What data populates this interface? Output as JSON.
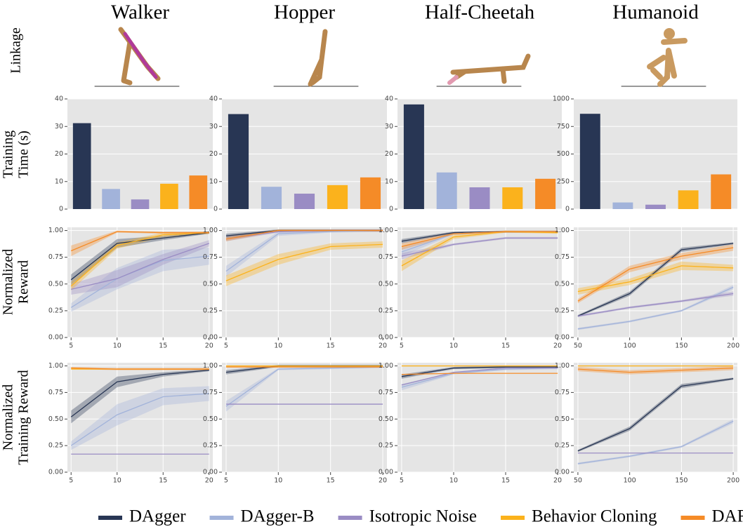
{
  "columns": [
    "Walker",
    "Hopper",
    "Half-Cheetah",
    "Humanoid"
  ],
  "row_labels": [
    [
      "Linkage"
    ],
    [
      "Training",
      "Time (s)"
    ],
    [
      "Normalized",
      "Reward"
    ],
    [
      "Normalized",
      "Training Reward"
    ]
  ],
  "chart_data": [
    {
      "type": "bar",
      "values": [
        31.2,
        7.3,
        3.5,
        9.2,
        12.2
      ],
      "colors": [
        "#283654",
        "#a2b3da",
        "#9a8cc4",
        "#fbb21c",
        "#f58b27"
      ],
      "ylim": [
        0,
        40
      ],
      "yticks": [
        0,
        10,
        20,
        30,
        40
      ],
      "grid": true
    },
    {
      "type": "bar",
      "values": [
        34.5,
        8.1,
        5.6,
        8.7,
        11.5
      ],
      "colors": [
        "#283654",
        "#a2b3da",
        "#9a8cc4",
        "#fbb21c",
        "#f58b27"
      ],
      "ylim": [
        0,
        40
      ],
      "yticks": [
        0,
        10,
        20,
        30,
        40
      ],
      "grid": true
    },
    {
      "type": "bar",
      "values": [
        38,
        13.3,
        7.9,
        7.9,
        11
      ],
      "colors": [
        "#283654",
        "#a2b3da",
        "#9a8cc4",
        "#fbb21c",
        "#f58b27"
      ],
      "ylim": [
        0,
        40
      ],
      "yticks": [
        0,
        10,
        20,
        30,
        40
      ],
      "grid": true
    },
    {
      "type": "bar",
      "values": [
        865,
        60,
        40,
        170,
        315
      ],
      "colors": [
        "#283654",
        "#a2b3da",
        "#9a8cc4",
        "#fbb21c",
        "#f58b27"
      ],
      "ylim": [
        0,
        1000
      ],
      "yticks": [
        0,
        250,
        500,
        750,
        1000
      ],
      "grid": true
    },
    {
      "type": "line",
      "x": [
        5,
        10,
        15,
        20
      ],
      "xlim": [
        4.6,
        20.4
      ],
      "xticks": [
        5,
        10,
        15,
        20
      ],
      "ylim": [
        0,
        1.03
      ],
      "yticks": [
        {
          "value": 0,
          "label": "0.00"
        },
        {
          "value": 0.25,
          "label": "0.25"
        },
        {
          "value": 0.5,
          "label": "0.50"
        },
        {
          "value": 0.75,
          "label": "0.75"
        },
        {
          "value": 1,
          "label": "1.00"
        }
      ],
      "grid": true,
      "series": [
        {
          "name": "DAgger",
          "color": "#283654",
          "values": [
            0.54,
            0.88,
            0.93,
            0.98
          ],
          "error": [
            0.05,
            0.04,
            0.02,
            0.01
          ]
        },
        {
          "name": "DAgger-B",
          "color": "#a2b3da",
          "values": [
            0.28,
            0.55,
            0.72,
            0.76
          ],
          "error": [
            0.04,
            0.1,
            0.1,
            0.08
          ]
        },
        {
          "name": "Isotropic Noise",
          "color": "#9a8cc4",
          "values": [
            0.45,
            0.55,
            0.73,
            0.88
          ],
          "error": [
            0.05,
            0.08,
            0.05,
            0.03
          ]
        },
        {
          "name": "Behavior Cloning",
          "color": "#fbb21c",
          "values": [
            0.48,
            0.86,
            0.96,
            0.98
          ],
          "error": [
            0.04,
            0.03,
            0.02,
            0.01
          ]
        },
        {
          "name": "DART",
          "color": "#f58b27",
          "values": [
            0.81,
            0.99,
            0.98,
            0.98
          ],
          "error": [
            0.05,
            0.01,
            0.01,
            0.01
          ]
        }
      ]
    },
    {
      "type": "line",
      "x": [
        5,
        10,
        15,
        20
      ],
      "xlim": [
        4.6,
        20.4
      ],
      "xticks": [
        5,
        10,
        15,
        20
      ],
      "ylim": [
        0,
        1.03
      ],
      "yticks": [
        {
          "value": 0,
          "label": "0.00"
        },
        {
          "value": 0.25,
          "label": "0.25"
        },
        {
          "value": 0.5,
          "label": "0.50"
        },
        {
          "value": 0.75,
          "label": "0.75"
        },
        {
          "value": 1,
          "label": "1.00"
        }
      ],
      "grid": true,
      "series": [
        {
          "name": "DAgger",
          "color": "#283654",
          "values": [
            0.95,
            1,
            1,
            1
          ],
          "error": [
            0.02,
            0.01,
            0.01,
            0.01
          ]
        },
        {
          "name": "DAgger-B",
          "color": "#a2b3da",
          "values": [
            0.62,
            0.97,
            0.99,
            1
          ],
          "error": [
            0.05,
            0.02,
            0.01,
            0.01
          ]
        },
        {
          "name": "Isotropic Noise",
          "color": "#9a8cc4",
          "values": [
            0.92,
            0.99,
            1,
            1
          ],
          "error": [
            0.02,
            0.01,
            0.01,
            0.01
          ]
        },
        {
          "name": "Behavior Cloning",
          "color": "#fbb21c",
          "values": [
            0.53,
            0.73,
            0.85,
            0.87
          ],
          "error": [
            0.05,
            0.05,
            0.03,
            0.03
          ]
        },
        {
          "name": "DART",
          "color": "#f58b27",
          "values": [
            0.92,
            1,
            1,
            1
          ],
          "error": [
            0.02,
            0.01,
            0.01,
            0.01
          ]
        }
      ]
    },
    {
      "type": "line",
      "x": [
        5,
        10,
        15,
        20
      ],
      "xlim": [
        4.6,
        20.4
      ],
      "xticks": [
        5,
        10,
        15,
        20
      ],
      "ylim": [
        0,
        1.03
      ],
      "yticks": [
        {
          "value": 0,
          "label": "0.00"
        },
        {
          "value": 0.25,
          "label": "0.25"
        },
        {
          "value": 0.5,
          "label": "0.50"
        },
        {
          "value": 0.75,
          "label": "0.75"
        },
        {
          "value": 1,
          "label": "1.00"
        }
      ],
      "grid": true,
      "series": [
        {
          "name": "DAgger",
          "color": "#283654",
          "values": [
            0.9,
            0.98,
            0.99,
            0.99
          ],
          "error": [
            0.02,
            0.01,
            0.01,
            0.01
          ]
        },
        {
          "name": "DAgger-B",
          "color": "#a2b3da",
          "values": [
            0.8,
            0.97,
            0.99,
            0.99
          ],
          "error": [
            0.04,
            0.01,
            0.01,
            0.01
          ]
        },
        {
          "name": "Isotropic Noise",
          "color": "#9a8cc4",
          "values": [
            0.76,
            0.87,
            0.93,
            0.93
          ],
          "error": [
            0.03,
            0.01,
            0.01,
            0.01
          ]
        },
        {
          "name": "Behavior Cloning",
          "color": "#fbb21c",
          "values": [
            0.67,
            0.94,
            0.99,
            0.98
          ],
          "error": [
            0.05,
            0.02,
            0.01,
            0.01
          ]
        },
        {
          "name": "DART",
          "color": "#f58b27",
          "values": [
            0.85,
            0.97,
            0.99,
            0.99
          ],
          "error": [
            0.03,
            0.01,
            0.01,
            0.01
          ]
        }
      ]
    },
    {
      "type": "line",
      "x": [
        50,
        100,
        150,
        200
      ],
      "xlim": [
        46,
        204
      ],
      "xticks": [
        50,
        100,
        150,
        200
      ],
      "ylim": [
        0,
        1.03
      ],
      "yticks": [
        {
          "value": 0,
          "label": "0.00"
        },
        {
          "value": 0.25,
          "label": "0.25"
        },
        {
          "value": 0.5,
          "label": "0.50"
        },
        {
          "value": 0.75,
          "label": "0.75"
        },
        {
          "value": 1,
          "label": "1.00"
        }
      ],
      "grid": true,
      "series": [
        {
          "name": "DAgger",
          "color": "#283654",
          "values": [
            0.2,
            0.41,
            0.82,
            0.88
          ],
          "error": [
            0.01,
            0.02,
            0.02,
            0.01
          ]
        },
        {
          "name": "DAgger-B",
          "color": "#a2b3da",
          "values": [
            0.08,
            0.15,
            0.25,
            0.47
          ],
          "error": [
            0.01,
            0.01,
            0.01,
            0.02
          ]
        },
        {
          "name": "Isotropic Noise",
          "color": "#9a8cc4",
          "values": [
            0.2,
            0.28,
            0.34,
            0.41
          ],
          "error": [
            0.01,
            0.01,
            0.01,
            0.02
          ]
        },
        {
          "name": "Behavior Cloning",
          "color": "#fbb21c",
          "values": [
            0.43,
            0.52,
            0.67,
            0.65
          ],
          "error": [
            0.03,
            0.03,
            0.04,
            0.03
          ]
        },
        {
          "name": "DART",
          "color": "#f58b27",
          "values": [
            0.34,
            0.64,
            0.76,
            0.84
          ],
          "error": [
            0.02,
            0.03,
            0.03,
            0.03
          ]
        }
      ]
    },
    {
      "type": "line",
      "x": [
        5,
        10,
        15,
        20
      ],
      "xlim": [
        4.6,
        20.4
      ],
      "xticks": [
        5,
        10,
        15,
        20
      ],
      "ylim": [
        0,
        1.03
      ],
      "yticks": [
        {
          "value": 0,
          "label": "0.00"
        },
        {
          "value": 0.25,
          "label": "0.25"
        },
        {
          "value": 0.5,
          "label": "0.50"
        },
        {
          "value": 0.75,
          "label": "0.75"
        },
        {
          "value": 1,
          "label": "1.00"
        }
      ],
      "grid": true,
      "series": [
        {
          "name": "DAgger",
          "color": "#283654",
          "values": [
            0.52,
            0.85,
            0.92,
            0.96
          ],
          "error": [
            0.06,
            0.05,
            0.02,
            0.01
          ]
        },
        {
          "name": "DAgger-B",
          "color": "#a2b3da",
          "values": [
            0.25,
            0.54,
            0.71,
            0.74
          ],
          "error": [
            0.04,
            0.1,
            0.08,
            0.07
          ]
        },
        {
          "name": "Isotropic Noise",
          "color": "#9a8cc4",
          "values": [
            0.17,
            0.17,
            0.17,
            0.17
          ]
        },
        {
          "name": "Behavior Cloning",
          "color": "#fbb21c",
          "values": [
            0.97,
            0.97,
            0.97,
            0.97
          ]
        },
        {
          "name": "DART",
          "color": "#f58b27",
          "values": [
            0.98,
            0.97,
            0.97,
            0.97
          ],
          "error": [
            0.01,
            0.01,
            0.01,
            0.01
          ]
        }
      ]
    },
    {
      "type": "line",
      "x": [
        5,
        10,
        15,
        20
      ],
      "xlim": [
        4.6,
        20.4
      ],
      "xticks": [
        5,
        10,
        15,
        20
      ],
      "ylim": [
        0,
        1.03
      ],
      "yticks": [
        {
          "value": 0,
          "label": "0.00"
        },
        {
          "value": 0.25,
          "label": "0.25"
        },
        {
          "value": 0.5,
          "label": "0.50"
        },
        {
          "value": 0.75,
          "label": "0.75"
        },
        {
          "value": 1,
          "label": "1.00"
        }
      ],
      "grid": true,
      "series": [
        {
          "name": "DAgger",
          "color": "#283654",
          "values": [
            0.94,
            1,
            1,
            1
          ],
          "error": [
            0.02,
            0.01,
            0.01,
            0.01
          ]
        },
        {
          "name": "DAgger-B",
          "color": "#a2b3da",
          "values": [
            0.62,
            0.97,
            0.98,
            0.99
          ],
          "error": [
            0.05,
            0.01,
            0.01,
            0.01
          ]
        },
        {
          "name": "Isotropic Noise",
          "color": "#9a8cc4",
          "values": [
            0.64,
            0.64,
            0.64,
            0.64
          ]
        },
        {
          "name": "Behavior Cloning",
          "color": "#fbb21c",
          "values": [
            1,
            1,
            1,
            1
          ]
        },
        {
          "name": "DART",
          "color": "#f58b27",
          "values": [
            0.99,
            0.99,
            0.99,
            0.99
          ]
        }
      ]
    },
    {
      "type": "line",
      "x": [
        5,
        10,
        15,
        20
      ],
      "xlim": [
        4.6,
        20.4
      ],
      "xticks": [
        5,
        10,
        15,
        20
      ],
      "ylim": [
        0,
        1.03
      ],
      "yticks": [
        {
          "value": 0,
          "label": "0.00"
        },
        {
          "value": 0.25,
          "label": "0.25"
        },
        {
          "value": 0.5,
          "label": "0.50"
        },
        {
          "value": 0.75,
          "label": "0.75"
        },
        {
          "value": 1,
          "label": "1.00"
        }
      ],
      "grid": true,
      "series": [
        {
          "name": "DAgger",
          "color": "#283654",
          "values": [
            0.9,
            0.98,
            0.99,
            0.99
          ],
          "error": [
            0.02,
            0.01,
            0.01,
            0.01
          ]
        },
        {
          "name": "DAgger-B",
          "color": "#a2b3da",
          "values": [
            0.8,
            0.93,
            0.97,
            0.98
          ],
          "error": [
            0.03,
            0.01,
            0.01,
            0.01
          ]
        },
        {
          "name": "Isotropic Noise",
          "color": "#9a8cc4",
          "values": [
            0.82,
            0.94,
            0.98,
            0.98
          ]
        },
        {
          "name": "Behavior Cloning",
          "color": "#fbb21c",
          "values": [
            1,
            1,
            1,
            1
          ]
        },
        {
          "name": "DART",
          "color": "#f58b27",
          "values": [
            0.92,
            0.93,
            0.93,
            0.93
          ]
        }
      ]
    },
    {
      "type": "line",
      "x": [
        50,
        100,
        150,
        200
      ],
      "xlim": [
        46,
        204
      ],
      "xticks": [
        50,
        100,
        150,
        200
      ],
      "ylim": [
        0,
        1.03
      ],
      "yticks": [
        {
          "value": 0,
          "label": "0.00"
        },
        {
          "value": 0.25,
          "label": "0.25"
        },
        {
          "value": 0.5,
          "label": "0.50"
        },
        {
          "value": 0.75,
          "label": "0.75"
        },
        {
          "value": 1,
          "label": "1.00"
        }
      ],
      "grid": true,
      "series": [
        {
          "name": "DAgger",
          "color": "#283654",
          "values": [
            0.2,
            0.41,
            0.81,
            0.88
          ],
          "error": [
            0.01,
            0.02,
            0.02,
            0.01
          ]
        },
        {
          "name": "DAgger-B",
          "color": "#a2b3da",
          "values": [
            0.08,
            0.15,
            0.24,
            0.48
          ],
          "error": [
            0.01,
            0.01,
            0.01,
            0.02
          ]
        },
        {
          "name": "Isotropic Noise",
          "color": "#9a8cc4",
          "values": [
            0.18,
            0.18,
            0.18,
            0.18
          ]
        },
        {
          "name": "Behavior Cloning",
          "color": "#fbb21c",
          "values": [
            1,
            1,
            1,
            1
          ]
        },
        {
          "name": "DART",
          "color": "#f58b27",
          "values": [
            0.97,
            0.94,
            0.96,
            0.98
          ],
          "error": [
            0.02,
            0.02,
            0.02,
            0.02
          ]
        }
      ]
    }
  ]
}
